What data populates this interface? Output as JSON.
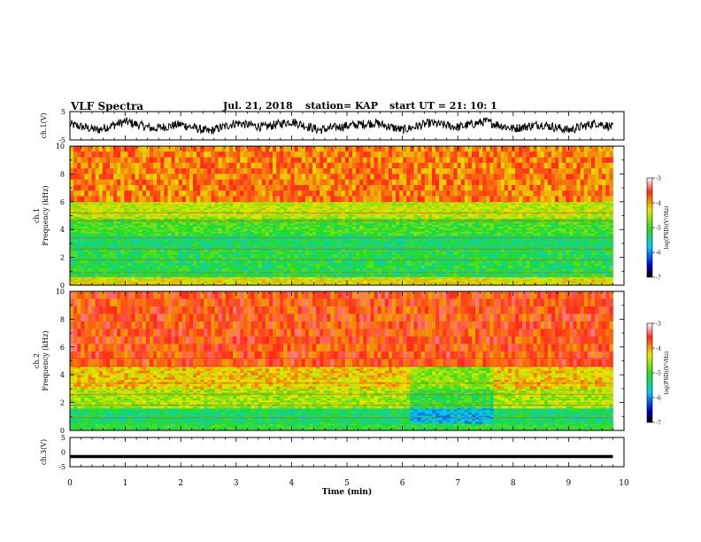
{
  "header": {
    "title": "VLF Spectra",
    "date": "Jul. 21, 2018",
    "station": "station= KAP",
    "start_ut": "start UT =  21: 10: 1"
  },
  "colors": {
    "spectrum_red": "#ff2a1a",
    "spectrum_yellow": "#e8e800",
    "spectrum_green": "#22dd22",
    "spectrum_cyan": "#10e0e0",
    "spectrum_blue": "#0000cc",
    "trace": "#000000"
  },
  "chart_data": [
    {
      "type": "line",
      "ylabel": "ch.1(V)",
      "ylim": [
        -5,
        5
      ],
      "yticks": [
        "5",
        "-5"
      ],
      "x": [
        0,
        0.5,
        1,
        1.5,
        2,
        2.5,
        3,
        3.5,
        4,
        4.5,
        5,
        5.5,
        6,
        6.5,
        7,
        7.5,
        8,
        8.5,
        9,
        9.5,
        9.8
      ],
      "values": [
        0.5,
        -1.5,
        1.5,
        -1,
        0.5,
        -2,
        1,
        -0.5,
        1.5,
        -1.5,
        0,
        1,
        -1.5,
        1,
        -0.5,
        1.5,
        -1,
        0.5,
        -1.5,
        1,
        -0.5
      ],
      "note_style": "noisy waveform"
    },
    {
      "type": "heatmap",
      "ylabel": "ch.1\nFrequency (kHz)",
      "ylim": [
        0,
        10
      ],
      "yticks": [
        "0",
        "2",
        "4",
        "6",
        "8",
        "10"
      ],
      "xlim": [
        0,
        10
      ],
      "data_end_min": 9.8,
      "colorbar": {
        "label": "log(PSD)(V²/Hz)",
        "ticks": [
          "-3",
          "-4",
          "-5",
          "-6",
          "-7"
        ],
        "range": [
          -7,
          -3
        ]
      },
      "bands": [
        {
          "from_khz": 0,
          "to_khz": 0.6,
          "level": -4.3
        },
        {
          "from_khz": 0.6,
          "to_khz": 2.6,
          "level": -5.2
        },
        {
          "from_khz": 2.6,
          "to_khz": 3.6,
          "level": -5.3
        },
        {
          "from_khz": 3.6,
          "to_khz": 4.8,
          "level": -5.0
        },
        {
          "from_khz": 4.8,
          "to_khz": 6.0,
          "level": -4.5
        },
        {
          "from_khz": 6.0,
          "to_khz": 10.0,
          "level": -3.9
        }
      ]
    },
    {
      "type": "heatmap",
      "ylabel": "ch.2\nFrequency (kHz)",
      "ylim": [
        0,
        10
      ],
      "yticks": [
        "0",
        "2",
        "4",
        "6",
        "8",
        "10"
      ],
      "xlim": [
        0,
        10
      ],
      "data_end_min": 9.8,
      "colorbar": {
        "label": "log(PSD)(V²/Hz)",
        "ticks": [
          "-3",
          "-4",
          "-5",
          "-6",
          "-7"
        ],
        "range": [
          -7,
          -3
        ]
      },
      "bands": [
        {
          "from_khz": 0,
          "to_khz": 0.5,
          "level": -5.1
        },
        {
          "from_khz": 0.5,
          "to_khz": 1.6,
          "level": -5.3
        },
        {
          "from_khz": 1.6,
          "to_khz": 3.0,
          "level": -4.6
        },
        {
          "from_khz": 3.0,
          "to_khz": 4.6,
          "level": -4.2
        },
        {
          "from_khz": 4.6,
          "to_khz": 10.0,
          "level": -3.7
        }
      ]
    },
    {
      "type": "line",
      "ylabel": "ch.3(V)",
      "ylim": [
        -5,
        5
      ],
      "yticks": [
        "5",
        "0",
        "-5"
      ],
      "x": [
        0,
        9.8
      ],
      "values": [
        -1.5,
        -1.5
      ],
      "xlabel": "Time (min)",
      "xticks": [
        "0",
        "1",
        "2",
        "3",
        "4",
        "5",
        "6",
        "7",
        "8",
        "9",
        "10"
      ],
      "xlim": [
        0,
        10
      ]
    }
  ]
}
